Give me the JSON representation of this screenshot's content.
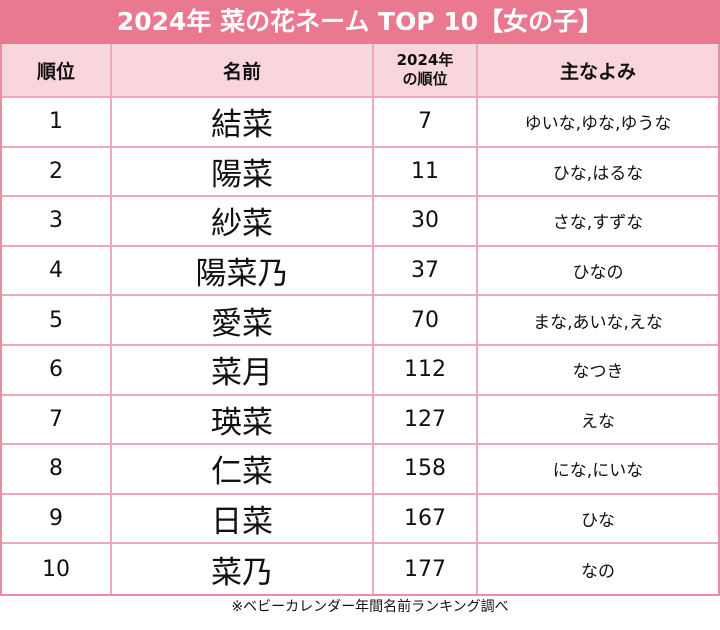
{
  "title": "2024年 菜の花ネーム TOP 10【女の子】",
  "table": {
    "header": [
      "順位",
      "名前",
      "2024年\nの順位",
      "主なよみ"
    ],
    "rows": [
      [
        1,
        "結菜",
        7,
        "ゆいな,ゆな,ゆうな"
      ],
      [
        2,
        "陽菜",
        11,
        "ひな,はるな"
      ],
      [
        3,
        "紗菜",
        30,
        "さな,すずな"
      ],
      [
        4,
        "陽菜乃",
        37,
        "ひなの"
      ],
      [
        5,
        "愛菜",
        70,
        "まな,あいな,えな"
      ],
      [
        6,
        "菜月",
        112,
        "なつき"
      ],
      [
        7,
        "瑛菜",
        127,
        "えな"
      ],
      [
        8,
        "仁菜",
        158,
        "にな,にいな"
      ],
      [
        9,
        "日菜",
        167,
        "ひな"
      ],
      [
        10,
        "菜乃",
        177,
        "なの"
      ]
    ]
  },
  "footer": "※ベビーカレンダー年間名前ランキング調べ"
}
